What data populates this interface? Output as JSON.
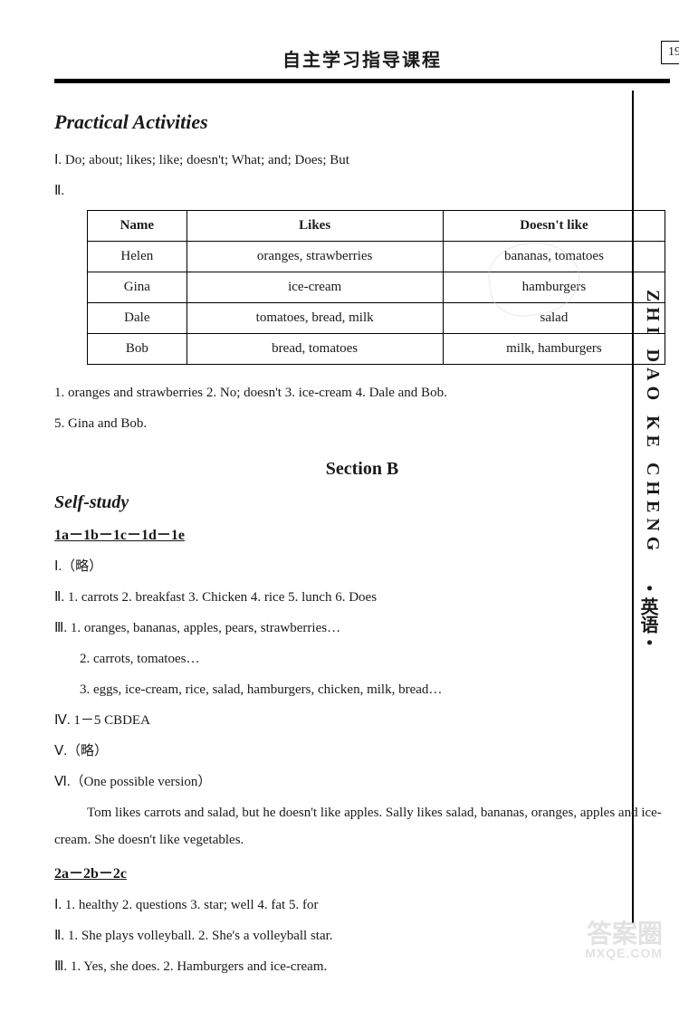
{
  "header": {
    "title": "自主学习指导课程",
    "page_number": "19"
  },
  "side": {
    "vertical_en": "ZHI DAO KE CHENG",
    "vertical_cn": "・英语・"
  },
  "practical": {
    "title": "Practical Activities",
    "line1": "Ⅰ. Do;  about;  likes;  like;  doesn't;  What;  and;  Does;  But",
    "line2": "Ⅱ.",
    "table": {
      "headers": [
        "Name",
        "Likes",
        "Doesn't like"
      ],
      "rows": [
        [
          "Helen",
          "oranges, strawberries",
          "bananas, tomatoes"
        ],
        [
          "Gina",
          "ice-cream",
          "hamburgers"
        ],
        [
          "Dale",
          "tomatoes, bread, milk",
          "salad"
        ],
        [
          "Bob",
          "bread, tomatoes",
          "milk, hamburgers"
        ]
      ]
    },
    "answers1": "1. oranges and strawberries  2. No; doesn't  3. ice-cream  4. Dale and Bob.",
    "answers2": "5. Gina and Bob."
  },
  "sectionB": {
    "title": "Section B",
    "selfstudy_title": "Self-study",
    "sub1": "1a－1b－1c－1d－1e",
    "l1": "Ⅰ.（略）",
    "l2": "Ⅱ. 1. carrots  2. breakfast  3. Chicken  4. rice  5. lunch  6. Does",
    "l3": "Ⅲ. 1. oranges, bananas, apples, pears, strawberries…",
    "l3b": "2. carrots, tomatoes…",
    "l3c": "3. eggs, ice-cream, rice, salad, hamburgers, chicken, milk, bread…",
    "l4": "Ⅳ. 1－5 CBDEA",
    "l5": "Ⅴ.（略）",
    "l6": "Ⅵ.（One possible version）",
    "l6para": "Tom likes carrots and salad, but he doesn't like apples. Sally likes salad, bananas, oranges, apples and ice-cream. She doesn't like vegetables.",
    "sub2": "2a－2b－2c",
    "s2l1": "Ⅰ. 1. healthy  2. questions  3. star; well  4. fat  5. for",
    "s2l2": "Ⅱ. 1. She plays volleyball.  2. She's a volleyball star.",
    "s2l3": "Ⅲ. 1. Yes, she does.  2. Hamburgers and ice-cream."
  },
  "watermark": {
    "line1": "答案圈",
    "line2": "MXQE.COM"
  },
  "colors": {
    "text": "#1a1a1a",
    "rule": "#000000",
    "watermark": "#d0d0d0",
    "background": "#ffffff"
  },
  "typography": {
    "body_fontsize": 15,
    "title_fontsize": 22,
    "header_fontsize": 20
  }
}
